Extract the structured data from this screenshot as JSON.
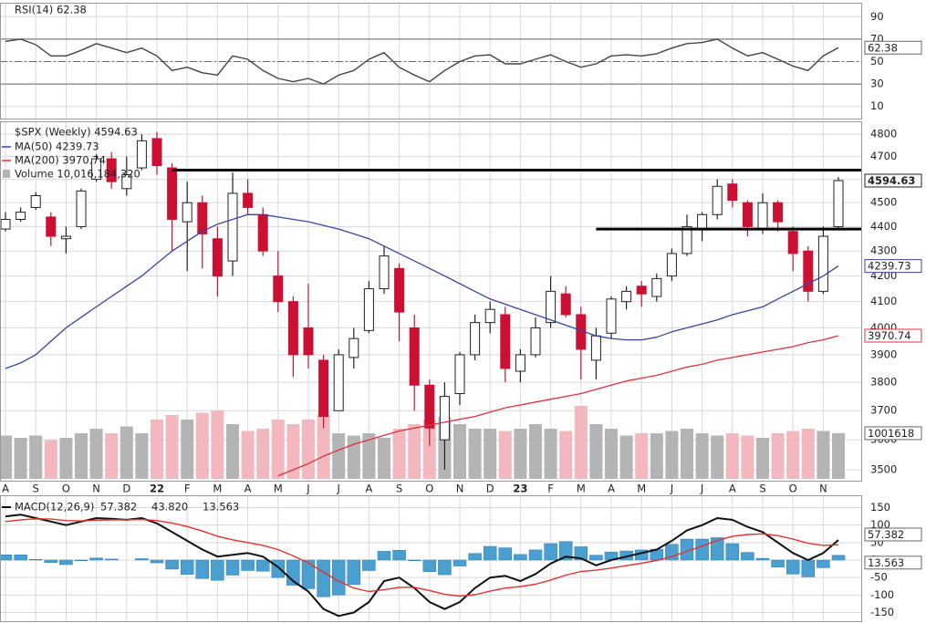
{
  "chart_data": [
    {
      "type": "line",
      "title": "RSI(14) 62.38",
      "series": [
        {
          "name": "RSI(14)",
          "color": "#444444",
          "values": [
            68,
            70,
            65,
            55,
            55,
            60,
            66,
            62,
            58,
            62,
            55,
            42,
            45,
            40,
            38,
            55,
            52,
            42,
            35,
            32,
            35,
            30,
            38,
            42,
            52,
            58,
            45,
            38,
            32,
            42,
            50,
            55,
            56,
            48,
            48,
            52,
            56,
            50,
            45,
            48,
            55,
            56,
            55,
            57,
            62,
            66,
            67,
            70,
            62,
            55,
            58,
            52,
            46,
            42,
            55,
            62.38
          ]
        }
      ],
      "ylim": [
        0,
        100
      ],
      "yticks": [
        10,
        30,
        50,
        70,
        90
      ],
      "reference_lines": [
        {
          "value": 70,
          "style": "solid"
        },
        {
          "value": 50,
          "style": "dashed"
        },
        {
          "value": 30,
          "style": "solid"
        }
      ],
      "grid": true
    },
    {
      "type": "candlestick",
      "title": "$SPX (Weekly) 4594.63",
      "categories": [
        "A",
        null,
        "S",
        null,
        "O",
        null,
        "N",
        null,
        "D",
        null,
        "22",
        null,
        "F",
        null,
        "M",
        null,
        "A",
        null,
        "M",
        null,
        "J",
        null,
        "J",
        null,
        "A",
        null,
        "S",
        null,
        "O",
        null,
        "N",
        null,
        "D",
        null,
        "23",
        null,
        "F",
        null,
        "M",
        null,
        "A",
        null,
        "M",
        null,
        "J",
        null,
        "J",
        null,
        "A",
        null,
        "S",
        null,
        "O",
        null,
        "N",
        null
      ],
      "open": [
        4390,
        4430,
        4480,
        4440,
        4350,
        4400,
        4600,
        4690,
        4560,
        4650,
        4780,
        4650,
        4420,
        4500,
        4350,
        4260,
        4540,
        4450,
        4200,
        4100,
        4000,
        3880,
        3700,
        3890,
        3990,
        4150,
        4230,
        4000,
        3790,
        3600,
        3760,
        3900,
        4020,
        4050,
        3840,
        3900,
        4020,
        4130,
        4050,
        3880,
        3980,
        4100,
        4160,
        4120,
        4200,
        4290,
        4390,
        4450,
        4580,
        4500,
        4390,
        4500,
        4380,
        4300,
        4140,
        4400
      ],
      "high": [
        4460,
        4480,
        4545,
        4460,
        4400,
        4560,
        4710,
        4720,
        4700,
        4800,
        4810,
        4670,
        4590,
        4530,
        4400,
        4630,
        4600,
        4480,
        4300,
        4120,
        4170,
        3900,
        3920,
        4000,
        4180,
        4320,
        4250,
        4050,
        3810,
        3800,
        3910,
        4050,
        4100,
        4080,
        3920,
        4040,
        4200,
        4160,
        4080,
        4000,
        4120,
        4160,
        4180,
        4210,
        4310,
        4450,
        4460,
        4600,
        4600,
        4510,
        4540,
        4510,
        4400,
        4320,
        4400,
        4610
      ],
      "low": [
        4380,
        4420,
        4470,
        4320,
        4290,
        4390,
        4590,
        4560,
        4530,
        4640,
        4620,
        4300,
        4220,
        4230,
        4120,
        4200,
        4450,
        4280,
        4060,
        3820,
        3850,
        3640,
        3700,
        3850,
        3980,
        4130,
        3950,
        3700,
        3580,
        3500,
        3720,
        3880,
        3980,
        3800,
        3800,
        3890,
        4000,
        4040,
        3810,
        3810,
        3960,
        4070,
        4080,
        4100,
        4180,
        4280,
        4340,
        4430,
        4480,
        4360,
        4370,
        4380,
        4220,
        4100,
        4130,
        4390
      ],
      "close": [
        4430,
        4460,
        4530,
        4360,
        4360,
        4550,
        4690,
        4590,
        4620,
        4770,
        4660,
        4430,
        4500,
        4370,
        4200,
        4540,
        4480,
        4300,
        4100,
        3900,
        3900,
        3680,
        3900,
        3960,
        4150,
        4280,
        4060,
        3790,
        3640,
        3750,
        3900,
        4020,
        4070,
        3850,
        3900,
        4000,
        4140,
        4050,
        3920,
        3970,
        4110,
        4140,
        4130,
        4190,
        4290,
        4400,
        4450,
        4570,
        4510,
        4400,
        4500,
        4420,
        4290,
        4140,
        4360,
        4594.63
      ],
      "up_color": "#ffffff",
      "down_color": "#cc1034",
      "series": [
        {
          "name": "MA(50) 4239.73",
          "color": "#3a44a0",
          "values": [
            3850,
            3870,
            3900,
            3950,
            4000,
            4040,
            4080,
            4120,
            4160,
            4200,
            4250,
            4300,
            4340,
            4380,
            4410,
            4430,
            4450,
            4450,
            4440,
            4430,
            4420,
            4405,
            4390,
            4370,
            4350,
            4320,
            4290,
            4260,
            4230,
            4200,
            4170,
            4140,
            4110,
            4090,
            4070,
            4050,
            4030,
            4010,
            3990,
            3970,
            3960,
            3955,
            3955,
            3965,
            3985,
            4000,
            4015,
            4030,
            4050,
            4065,
            4080,
            4110,
            4140,
            4170,
            4200,
            4239.73
          ]
        },
        {
          "name": "MA(200) 3970.74",
          "color": "#e0303c",
          "values": [
            null,
            null,
            null,
            null,
            null,
            null,
            null,
            null,
            null,
            null,
            null,
            null,
            null,
            null,
            null,
            null,
            null,
            null,
            3480,
            3500,
            3520,
            3545,
            3565,
            3585,
            3600,
            3615,
            3630,
            3640,
            3650,
            3660,
            3670,
            3680,
            3695,
            3710,
            3720,
            3730,
            3740,
            3750,
            3760,
            3775,
            3790,
            3805,
            3815,
            3825,
            3840,
            3855,
            3865,
            3880,
            3890,
            3900,
            3910,
            3920,
            3930,
            3945,
            3955,
            3970.74
          ]
        }
      ],
      "volume": {
        "name": "Volume 10,016,184,320",
        "box_label": "1001618",
        "up_color": "#b4b4b4",
        "down_color": "#f2b8be",
        "ylim": [
          0,
          20
        ],
        "values": [
          9.5,
          9,
          9.5,
          8.5,
          9,
          10,
          11,
          10,
          11.5,
          10,
          13,
          14,
          13,
          14.5,
          15,
          12,
          10.5,
          11,
          13,
          12,
          13,
          14,
          10,
          9.5,
          10,
          9,
          11,
          12,
          13,
          13.5,
          12,
          11,
          11,
          10.5,
          11,
          12,
          11,
          10.5,
          16,
          12,
          11,
          9.5,
          10,
          10,
          10.5,
          11,
          10,
          9.5,
          10,
          9.5,
          9,
          10,
          10.5,
          11,
          10.5,
          10.016
        ]
      },
      "levels": [
        {
          "value": 4640,
          "from": 11
        },
        {
          "value": 4390,
          "from": 39
        }
      ],
      "log_scale": true,
      "ylim": [
        3470,
        4850
      ],
      "yticks": [
        3500,
        3600,
        3700,
        3800,
        3900,
        4000,
        4100,
        4200,
        4300,
        4400,
        4500,
        4600,
        4700,
        4800
      ],
      "grid": true
    },
    {
      "type": "macd",
      "title": "MACD(12,26,9)",
      "series": [
        {
          "name": "57.382",
          "color": "#111111",
          "style": "line",
          "values": [
            125,
            130,
            120,
            110,
            100,
            110,
            120,
            118,
            115,
            120,
            105,
            80,
            55,
            30,
            10,
            15,
            20,
            10,
            -20,
            -60,
            -90,
            -140,
            -160,
            -150,
            -120,
            -60,
            -50,
            -80,
            -120,
            -140,
            -120,
            -80,
            -50,
            -45,
            -60,
            -40,
            -10,
            10,
            5,
            -15,
            0,
            10,
            20,
            30,
            55,
            85,
            100,
            120,
            115,
            95,
            80,
            50,
            20,
            0,
            20,
            57.382
          ]
        },
        {
          "name": "43.820",
          "color": "#e8302c",
          "style": "line",
          "values": [
            110,
            115,
            118,
            117,
            113,
            112,
            114,
            115,
            115,
            116,
            113,
            106,
            96,
            83,
            68,
            58,
            50,
            42,
            30,
            12,
            -8,
            -35,
            -60,
            -80,
            -90,
            -85,
            -78,
            -78,
            -87,
            -98,
            -103,
            -99,
            -89,
            -80,
            -76,
            -69,
            -57,
            -43,
            -33,
            -29,
            -23,
            -16,
            -9,
            -1,
            10,
            25,
            40,
            56,
            68,
            73,
            75,
            70,
            60,
            48,
            42,
            43.82
          ]
        },
        {
          "name": "13.563",
          "color": "#4a9fd0",
          "style": "histogram",
          "values": [
            15,
            15,
            2,
            -7,
            -13,
            -2,
            6,
            3,
            0,
            4,
            -8,
            -26,
            -41,
            -53,
            -58,
            -43,
            -30,
            -32,
            -50,
            -72,
            -82,
            -105,
            -100,
            -70,
            -30,
            25,
            28,
            -2,
            -33,
            -42,
            -17,
            19,
            39,
            35,
            16,
            29,
            47,
            53,
            38,
            14,
            23,
            26,
            29,
            31,
            45,
            60,
            60,
            64,
            47,
            22,
            5,
            -20,
            -40,
            -48,
            -22,
            13.563
          ]
        }
      ],
      "ylim": [
        -180,
        180
      ],
      "yticks": [
        150,
        100,
        50,
        0,
        -50,
        -100,
        -150
      ],
      "grid": true
    }
  ]
}
